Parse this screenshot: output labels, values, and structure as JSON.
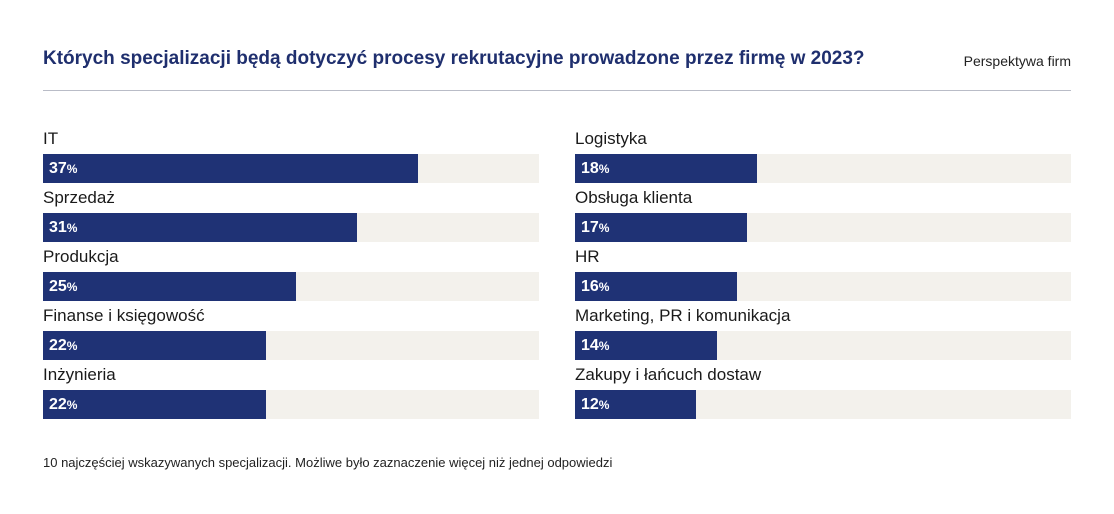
{
  "chart_data": {
    "type": "bar",
    "orientation": "horizontal",
    "title": "Których specjalizacji będą dotyczyć procesy rekrutacyjne prowadzone przez firmę w 2023?",
    "subtitle": "Perspektywa firm",
    "unit": "%",
    "xlim": [
      0,
      49
    ],
    "columns": [
      {
        "categories": [
          "IT",
          "Sprzedaż",
          "Produkcja",
          "Finanse i księgowość",
          "Inżynieria"
        ],
        "values": [
          37,
          31,
          25,
          22,
          22
        ]
      },
      {
        "categories": [
          "Logistyka",
          "Obsługa klienta",
          "HR",
          "Marketing, PR i komunikacja",
          "Zakupy i łańcuch dostaw"
        ],
        "values": [
          18,
          17,
          16,
          14,
          12
        ]
      }
    ],
    "note": "10 najczęściej wskazywanych specjalizacji. Możliwe było zaznaczenie więcej niż jednej odpowiedzi",
    "colors": {
      "bar": "#1f3275",
      "track": "#f3f1ec",
      "title": "#1f2f6e"
    }
  }
}
